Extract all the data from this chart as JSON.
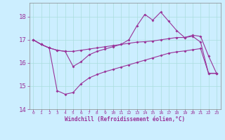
{
  "xlabel": "Windchill (Refroidissement éolien,°C)",
  "hours": [
    0,
    1,
    2,
    3,
    4,
    5,
    6,
    7,
    8,
    9,
    10,
    11,
    12,
    13,
    14,
    15,
    16,
    17,
    18,
    19,
    20,
    21,
    22,
    23
  ],
  "line1": [
    17.0,
    16.8,
    16.65,
    16.55,
    16.5,
    16.5,
    16.55,
    16.6,
    16.65,
    16.7,
    16.75,
    16.8,
    16.85,
    16.9,
    16.92,
    16.95,
    17.0,
    17.05,
    17.1,
    17.1,
    17.15,
    16.9,
    15.55,
    15.55
  ],
  "line2": [
    17.0,
    16.8,
    16.65,
    16.55,
    16.5,
    15.85,
    16.05,
    16.35,
    16.5,
    16.6,
    16.7,
    16.8,
    17.0,
    17.6,
    18.1,
    17.85,
    18.2,
    17.8,
    17.4,
    17.1,
    17.2,
    17.15,
    16.3,
    15.55
  ],
  "line3": [
    17.0,
    16.8,
    16.65,
    14.8,
    14.65,
    14.72,
    15.1,
    15.35,
    15.5,
    15.62,
    15.72,
    15.82,
    15.92,
    16.02,
    16.12,
    16.22,
    16.32,
    16.42,
    16.48,
    16.52,
    16.57,
    16.62,
    15.55,
    15.55
  ],
  "line_color": "#993399",
  "bg_color": "#cceeff",
  "grid_color": "#aadddd",
  "ylim": [
    14.0,
    18.6
  ],
  "yticks": [
    14,
    15,
    16,
    17,
    18
  ],
  "xlim": [
    -0.5,
    23.5
  ]
}
